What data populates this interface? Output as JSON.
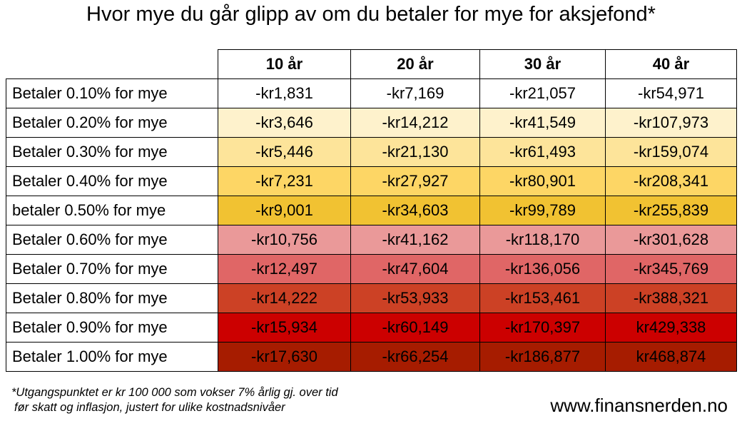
{
  "header": {
    "title": "Hvor mye du går glipp av om du betaler for mye for aksjefond*"
  },
  "table": {
    "columns": [
      "10 år",
      "20 år",
      "30 år",
      "40 år"
    ],
    "rows": [
      {
        "label": "Betaler 0.10% for mye",
        "cells": [
          "-kr1,831",
          "-kr7,169",
          "-kr21,057",
          "-kr54,971"
        ]
      },
      {
        "label": "Betaler 0.20% for mye",
        "cells": [
          "-kr3,646",
          "-kr14,212",
          "-kr41,549",
          "-kr107,973"
        ]
      },
      {
        "label": "Betaler 0.30% for mye",
        "cells": [
          "-kr5,446",
          "-kr21,130",
          "-kr61,493",
          "-kr159,074"
        ]
      },
      {
        "label": "Betaler 0.40% for mye",
        "cells": [
          "-kr7,231",
          "-kr27,927",
          "-kr80,901",
          "-kr208,341"
        ]
      },
      {
        "label": "betaler 0.50% for mye",
        "cells": [
          "-kr9,001",
          "-kr34,603",
          "-kr99,789",
          "-kr255,839"
        ]
      },
      {
        "label": "Betaler 0.60% for mye",
        "cells": [
          "-kr10,756",
          "-kr41,162",
          "-kr118,170",
          "-kr301,628"
        ]
      },
      {
        "label": "Betaler 0.70% for mye",
        "cells": [
          "-kr12,497",
          "-kr47,604",
          "-kr136,056",
          "-kr345,769"
        ]
      },
      {
        "label": "Betaler 0.80% for mye",
        "cells": [
          "-kr14,222",
          "-kr53,933",
          "-kr153,461",
          "-kr388,321"
        ]
      },
      {
        "label": "Betaler 0.90% for mye",
        "cells": [
          "-kr15,934",
          "-kr60,149",
          "-kr170,397",
          "kr429,338"
        ]
      },
      {
        "label": "Betaler 1.00% for mye",
        "cells": [
          "-kr17,630",
          "-kr66,254",
          "-kr186,877",
          "kr468,874"
        ]
      }
    ]
  },
  "footer": {
    "footnote": [
      "*Utgangspunktet er kr 100 000 som vokser 7% årlig gj. over tid",
      "før skatt og inflasjon, justert for ulike kostnadsnivåer"
    ],
    "website": "www.finansnerden.no"
  }
}
